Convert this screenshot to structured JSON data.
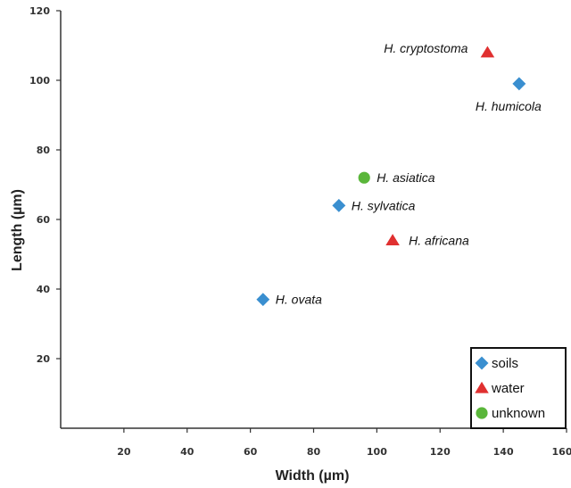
{
  "chart_data": {
    "type": "scatter",
    "xlabel": "Width (µm)",
    "ylabel": "Length (µm)",
    "xlim": [
      0,
      160
    ],
    "ylim": [
      0,
      120
    ],
    "x_ticks": [
      20,
      40,
      60,
      80,
      100,
      120,
      140,
      160
    ],
    "y_ticks": [
      20,
      40,
      60,
      80,
      100,
      120
    ],
    "grid": false,
    "legend_position": "bottom-right",
    "series": [
      {
        "name": "soils",
        "marker": "diamond",
        "color": "#3a8fd0",
        "points": [
          {
            "label": "H. humicola",
            "x": 145,
            "y": 99
          },
          {
            "label": "H. sylvatica",
            "x": 88,
            "y": 64
          },
          {
            "label": "H. ovata",
            "x": 64,
            "y": 37
          }
        ]
      },
      {
        "name": "water",
        "marker": "triangle",
        "color": "#e03030",
        "points": [
          {
            "label": "H. cryptostoma",
            "x": 135,
            "y": 108
          },
          {
            "label": "H. africana",
            "x": 105,
            "y": 54
          }
        ]
      },
      {
        "name": "unknown",
        "marker": "circle",
        "color": "#5ab63a",
        "points": [
          {
            "label": "H. asiatica",
            "x": 96,
            "y": 72
          }
        ]
      }
    ]
  }
}
